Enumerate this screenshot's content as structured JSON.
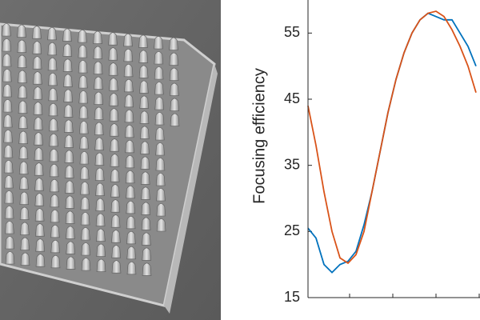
{
  "chart_data": {
    "type": "line",
    "ylabel": "Focusing efficiency",
    "ylim": [
      15,
      60
    ],
    "yticks": [
      15,
      25,
      35,
      45,
      55
    ],
    "grid": false,
    "series": [
      {
        "color": "#0072bd",
        "values": [
          25.5,
          24,
          20,
          18.8,
          20,
          20.5,
          22,
          26,
          31,
          37,
          43,
          48,
          52,
          55,
          57,
          58,
          57.5,
          57,
          57,
          55,
          53,
          50
        ]
      },
      {
        "color": "#d95319",
        "values": [
          44,
          38,
          31,
          25,
          21,
          20.2,
          21.5,
          25,
          31,
          37,
          43,
          48,
          52,
          55,
          57,
          58,
          58.3,
          57.5,
          55.5,
          53,
          50,
          46
        ]
      }
    ]
  }
}
